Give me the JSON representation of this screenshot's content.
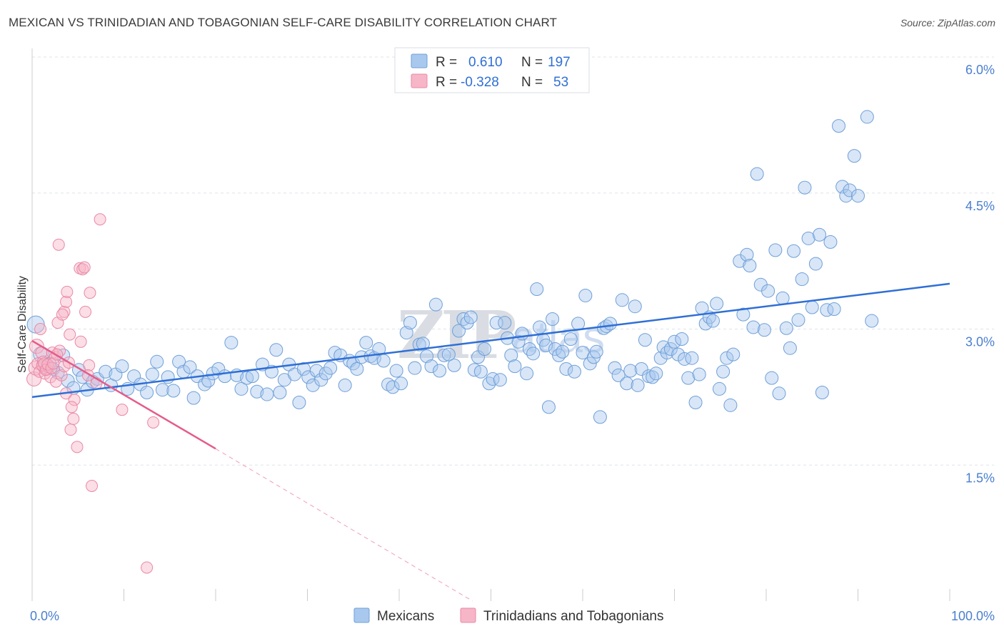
{
  "title": "MEXICAN VS TRINIDADIAN AND TOBAGONIAN SELF-CARE DISABILITY CORRELATION CHART",
  "source": "Source: ZipAtlas.com",
  "watermark": {
    "main": "ZIP",
    "suffix": "atlas"
  },
  "stats": {
    "mexicans": {
      "r_label": "R =",
      "r_value": "0.610",
      "n_label": "N =",
      "n_value": "197"
    },
    "trinidadians": {
      "r_label": "R =",
      "r_value": "-0.328",
      "n_label": "N =",
      "n_value": "53"
    }
  },
  "colors": {
    "blue_fill": "#a9c8ee",
    "blue_stroke": "#6f9fd8",
    "blue_line": "#2f6fd6",
    "pink_fill": "#f6b6c8",
    "pink_stroke": "#ea88a6",
    "pink_line": "#e65b8a",
    "grid": "#dfe3e8",
    "tick_text": "#4a7fcf"
  },
  "chart_data": {
    "type": "scatter",
    "title": "MEXICAN VS TRINIDADIAN AND TOBAGONIAN SELF-CARE DISABILITY CORRELATION CHART",
    "xlabel": "",
    "ylabel": "Self-Care Disability",
    "xlim": [
      0,
      100
    ],
    "ylim": [
      0,
      6.0
    ],
    "x_tick_labels": [
      "0.0%",
      "100.0%"
    ],
    "y_ticks": [
      1.5,
      3.0,
      4.5,
      6.0
    ],
    "y_tick_labels": [
      "1.5%",
      "3.0%",
      "4.5%",
      "6.0%"
    ],
    "grid": true,
    "legend_position": "bottom-center",
    "series": [
      {
        "name": "Mexicans",
        "color": "#a9c8ee",
        "trend": {
          "x": [
            0,
            100
          ],
          "y": [
            2.25,
            3.5
          ]
        },
        "points": [
          [
            0.4,
            3.05
          ],
          [
            1.0,
            2.72
          ],
          [
            1.3,
            2.58
          ],
          [
            1.9,
            2.62
          ],
          [
            2.3,
            2.56
          ],
          [
            2.8,
            2.52
          ],
          [
            3.4,
            2.71
          ],
          [
            3.9,
            2.43
          ],
          [
            4.5,
            2.35
          ],
          [
            5.1,
            2.55
          ],
          [
            5.5,
            2.47
          ],
          [
            6.0,
            2.33
          ],
          [
            6.6,
            2.42
          ],
          [
            7.1,
            2.45
          ],
          [
            8.0,
            2.53
          ],
          [
            8.6,
            2.38
          ],
          [
            9.1,
            2.5
          ],
          [
            9.8,
            2.59
          ],
          [
            10.4,
            2.34
          ],
          [
            11.1,
            2.48
          ],
          [
            11.8,
            2.39
          ],
          [
            12.5,
            2.3
          ],
          [
            13.1,
            2.5
          ],
          [
            13.6,
            2.64
          ],
          [
            14.2,
            2.33
          ],
          [
            14.8,
            2.47
          ],
          [
            15.4,
            2.32
          ],
          [
            16.0,
            2.64
          ],
          [
            16.5,
            2.53
          ],
          [
            17.2,
            2.58
          ],
          [
            17.6,
            2.24
          ],
          [
            18.0,
            2.48
          ],
          [
            18.8,
            2.39
          ],
          [
            19.2,
            2.43
          ],
          [
            19.7,
            2.51
          ],
          [
            20.3,
            2.56
          ],
          [
            21.0,
            2.48
          ],
          [
            21.7,
            2.85
          ],
          [
            22.3,
            2.49
          ],
          [
            22.8,
            2.34
          ],
          [
            23.4,
            2.46
          ],
          [
            24.0,
            2.48
          ],
          [
            24.5,
            2.31
          ],
          [
            25.1,
            2.61
          ],
          [
            25.6,
            2.28
          ],
          [
            26.1,
            2.53
          ],
          [
            26.6,
            2.77
          ],
          [
            27.0,
            2.3
          ],
          [
            27.5,
            2.44
          ],
          [
            28.0,
            2.61
          ],
          [
            28.6,
            2.5
          ],
          [
            29.1,
            2.19
          ],
          [
            29.6,
            2.56
          ],
          [
            30.1,
            2.47
          ],
          [
            30.6,
            2.38
          ],
          [
            31.0,
            2.54
          ],
          [
            31.5,
            2.44
          ],
          [
            32.0,
            2.51
          ],
          [
            32.5,
            2.57
          ],
          [
            33.0,
            2.74
          ],
          [
            33.6,
            2.71
          ],
          [
            34.1,
            2.38
          ],
          [
            34.6,
            2.65
          ],
          [
            35.0,
            2.62
          ],
          [
            35.4,
            2.56
          ],
          [
            35.9,
            2.69
          ],
          [
            36.4,
            2.85
          ],
          [
            36.9,
            2.7
          ],
          [
            37.3,
            2.68
          ],
          [
            37.8,
            2.78
          ],
          [
            38.3,
            2.65
          ],
          [
            38.8,
            2.39
          ],
          [
            39.3,
            2.36
          ],
          [
            39.7,
            2.54
          ],
          [
            40.2,
            2.4
          ],
          [
            40.8,
            2.96
          ],
          [
            41.2,
            3.07
          ],
          [
            41.7,
            2.57
          ],
          [
            42.2,
            2.83
          ],
          [
            42.6,
            2.84
          ],
          [
            43.0,
            2.7
          ],
          [
            43.5,
            2.59
          ],
          [
            44.0,
            3.27
          ],
          [
            44.4,
            2.54
          ],
          [
            44.9,
            2.71
          ],
          [
            45.4,
            2.72
          ],
          [
            46.0,
            2.6
          ],
          [
            46.5,
            2.98
          ],
          [
            47.0,
            3.11
          ],
          [
            47.4,
            3.07
          ],
          [
            47.8,
            3.13
          ],
          [
            48.2,
            2.55
          ],
          [
            48.6,
            2.69
          ],
          [
            48.9,
            2.53
          ],
          [
            49.3,
            2.78
          ],
          [
            49.8,
            2.4
          ],
          [
            50.2,
            2.45
          ],
          [
            50.6,
            3.07
          ],
          [
            51.0,
            2.44
          ],
          [
            51.5,
            3.07
          ],
          [
            51.8,
            2.9
          ],
          [
            52.2,
            2.71
          ],
          [
            52.6,
            2.59
          ],
          [
            53.0,
            2.86
          ],
          [
            53.4,
            2.95
          ],
          [
            53.9,
            2.51
          ],
          [
            54.2,
            2.78
          ],
          [
            54.6,
            2.73
          ],
          [
            55.0,
            3.44
          ],
          [
            55.3,
            3.02
          ],
          [
            55.7,
            2.88
          ],
          [
            56.0,
            2.82
          ],
          [
            56.3,
            2.14
          ],
          [
            56.7,
            3.11
          ],
          [
            57.0,
            2.78
          ],
          [
            57.4,
            2.71
          ],
          [
            57.8,
            2.75
          ],
          [
            58.2,
            2.56
          ],
          [
            58.7,
            2.89
          ],
          [
            59.1,
            2.53
          ],
          [
            59.5,
            3.06
          ],
          [
            60.0,
            2.74
          ],
          [
            60.3,
            3.37
          ],
          [
            60.8,
            2.62
          ],
          [
            61.2,
            2.69
          ],
          [
            61.5,
            2.75
          ],
          [
            61.9,
            2.03
          ],
          [
            62.3,
            3.01
          ],
          [
            62.6,
            3.03
          ],
          [
            63.0,
            3.06
          ],
          [
            63.5,
            2.57
          ],
          [
            63.9,
            2.49
          ],
          [
            64.3,
            3.32
          ],
          [
            64.8,
            2.4
          ],
          [
            65.2,
            2.54
          ],
          [
            65.7,
            3.25
          ],
          [
            66.0,
            2.38
          ],
          [
            66.4,
            2.56
          ],
          [
            66.8,
            2.88
          ],
          [
            67.2,
            2.48
          ],
          [
            67.6,
            2.47
          ],
          [
            68.0,
            2.51
          ],
          [
            68.5,
            2.68
          ],
          [
            68.8,
            2.8
          ],
          [
            69.2,
            2.74
          ],
          [
            69.6,
            2.78
          ],
          [
            70.0,
            2.86
          ],
          [
            70.4,
            2.72
          ],
          [
            70.8,
            2.89
          ],
          [
            71.1,
            2.67
          ],
          [
            71.5,
            2.46
          ],
          [
            71.9,
            2.68
          ],
          [
            72.3,
            2.19
          ],
          [
            72.7,
            2.5
          ],
          [
            73.0,
            3.23
          ],
          [
            73.4,
            3.06
          ],
          [
            73.8,
            3.13
          ],
          [
            74.2,
            3.09
          ],
          [
            74.6,
            3.28
          ],
          [
            74.9,
            2.34
          ],
          [
            75.3,
            2.53
          ],
          [
            75.7,
            2.68
          ],
          [
            76.1,
            2.16
          ],
          [
            76.4,
            2.72
          ],
          [
            77.1,
            3.75
          ],
          [
            77.5,
            3.16
          ],
          [
            77.9,
            3.82
          ],
          [
            78.2,
            3.7
          ],
          [
            78.6,
            3.02
          ],
          [
            79.0,
            4.71
          ],
          [
            79.4,
            3.49
          ],
          [
            79.8,
            2.99
          ],
          [
            80.2,
            3.42
          ],
          [
            80.6,
            2.46
          ],
          [
            81.0,
            3.87
          ],
          [
            81.4,
            2.29
          ],
          [
            81.8,
            3.34
          ],
          [
            82.2,
            3.01
          ],
          [
            82.6,
            2.79
          ],
          [
            83.0,
            3.86
          ],
          [
            83.5,
            3.1
          ],
          [
            83.9,
            3.55
          ],
          [
            84.2,
            4.56
          ],
          [
            84.6,
            4.0
          ],
          [
            85.0,
            3.24
          ],
          [
            85.4,
            3.72
          ],
          [
            85.8,
            4.04
          ],
          [
            86.1,
            2.3
          ],
          [
            86.6,
            3.21
          ],
          [
            87.0,
            3.96
          ],
          [
            87.4,
            3.22
          ],
          [
            87.9,
            5.24
          ],
          [
            88.3,
            4.57
          ],
          [
            88.7,
            4.47
          ],
          [
            89.1,
            4.53
          ],
          [
            89.6,
            4.91
          ],
          [
            90.0,
            4.47
          ],
          [
            91.0,
            5.34
          ],
          [
            91.5,
            3.09
          ]
        ]
      },
      {
        "name": "Trinidadians and Tobagonians",
        "color": "#f6b6c8",
        "trend": {
          "x": [
            0,
            20
          ],
          "y": [
            2.87,
            1.68
          ],
          "dashed_to": {
            "x": 48,
            "y": 0.0
          }
        },
        "points": [
          [
            0.2,
            2.45
          ],
          [
            0.4,
            2.57
          ],
          [
            0.5,
            2.81
          ],
          [
            0.6,
            2.62
          ],
          [
            0.8,
            2.53
          ],
          [
            1.0,
            2.74
          ],
          [
            1.2,
            2.64
          ],
          [
            1.4,
            2.51
          ],
          [
            1.6,
            2.56
          ],
          [
            1.8,
            2.58
          ],
          [
            2.0,
            2.47
          ],
          [
            2.2,
            2.74
          ],
          [
            2.5,
            2.69
          ],
          [
            0.9,
            3.0
          ],
          [
            1.1,
            2.6
          ],
          [
            1.3,
            2.62
          ],
          [
            1.5,
            2.55
          ],
          [
            1.7,
            2.61
          ],
          [
            2.1,
            2.57
          ],
          [
            2.3,
            2.62
          ],
          [
            2.6,
            2.42
          ],
          [
            2.8,
            3.07
          ],
          [
            3.0,
            2.76
          ],
          [
            3.2,
            2.49
          ],
          [
            3.5,
            2.59
          ],
          [
            3.7,
            2.29
          ],
          [
            4.0,
            2.63
          ],
          [
            4.2,
            1.89
          ],
          [
            4.5,
            2.01
          ],
          [
            4.9,
            1.7
          ],
          [
            5.3,
            2.86
          ],
          [
            5.8,
            3.19
          ],
          [
            6.2,
            2.6
          ],
          [
            6.5,
            1.27
          ],
          [
            7.0,
            2.4
          ],
          [
            9.8,
            2.11
          ],
          [
            12.5,
            0.37
          ],
          [
            13.2,
            1.97
          ],
          [
            2.9,
            3.93
          ],
          [
            3.5,
            3.19
          ],
          [
            3.7,
            3.3
          ],
          [
            4.1,
            2.94
          ],
          [
            4.6,
            2.22
          ],
          [
            3.3,
            3.16
          ],
          [
            5.2,
            3.67
          ],
          [
            5.5,
            3.66
          ],
          [
            5.7,
            3.68
          ],
          [
            6.1,
            2.49
          ],
          [
            6.3,
            3.4
          ],
          [
            7.4,
            4.21
          ],
          [
            4.3,
            2.14
          ],
          [
            3.8,
            3.41
          ],
          [
            2.7,
            2.72
          ]
        ]
      }
    ]
  },
  "legend": {
    "mexicans": "Mexicans",
    "trinidadians": "Trinidadians and Tobagonians"
  }
}
